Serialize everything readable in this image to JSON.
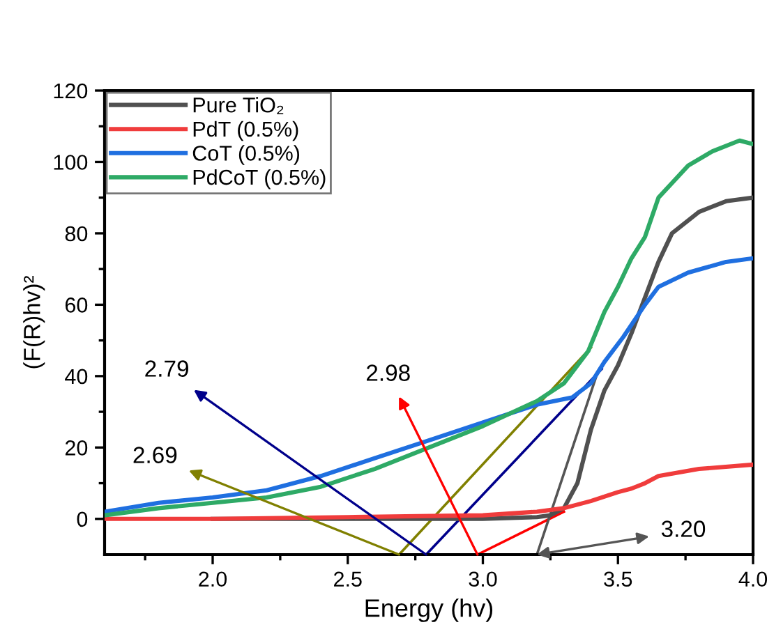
{
  "chart_data": {
    "type": "line",
    "xlabel": "Energy (hv)",
    "ylabel": "(F(R)hv)²",
    "xlim": [
      1.6,
      4.0
    ],
    "ylim": [
      -10,
      120
    ],
    "xticks": [
      {
        "value": 1.75,
        "label": null
      },
      {
        "value": 2.0,
        "label": "2.0"
      },
      {
        "value": 2.25,
        "label": null
      },
      {
        "value": 2.5,
        "label": "2.5"
      },
      {
        "value": 2.75,
        "label": null
      },
      {
        "value": 3.0,
        "label": "3.0"
      },
      {
        "value": 3.25,
        "label": null
      },
      {
        "value": 3.5,
        "label": "3.5"
      },
      {
        "value": 3.75,
        "label": null
      },
      {
        "value": 4.0,
        "label": "4.0"
      }
    ],
    "yticks": [
      0,
      {
        "value": 10,
        "label": null
      },
      20,
      {
        "value": 30,
        "label": null
      },
      40,
      {
        "value": 50,
        "label": null
      },
      60,
      {
        "value": 70,
        "label": null
      },
      80,
      {
        "value": 90,
        "label": null
      },
      100,
      {
        "value": 110,
        "label": null
      },
      120
    ],
    "grid": false,
    "legend": "top left",
    "series": [
      {
        "name": "Pure TiO₂",
        "color": "#505050",
        "x": [
          2.0,
          2.5,
          3.0,
          3.2,
          3.25,
          3.3,
          3.35,
          3.4,
          3.45,
          3.5,
          3.55,
          3.6,
          3.65,
          3.7,
          3.8,
          3.9,
          4.0
        ],
        "values": [
          0,
          0,
          0,
          0.5,
          1,
          3,
          10,
          25,
          36,
          43,
          52,
          62,
          72,
          80,
          86,
          89,
          90
        ]
      },
      {
        "name": "PdT (0.5%)",
        "color": "#f03c3c",
        "x": [
          1.6,
          2.0,
          2.5,
          3.0,
          3.2,
          3.3,
          3.4,
          3.5,
          3.55,
          3.6,
          3.65,
          3.8,
          4.0
        ],
        "values": [
          0,
          0,
          0.5,
          1,
          2,
          3,
          5,
          7.5,
          8.5,
          10,
          12,
          14,
          15.2
        ]
      },
      {
        "name": "CoT (0.5%)",
        "color": "#1f6fe0",
        "x": [
          1.6,
          1.8,
          2.0,
          2.2,
          2.4,
          2.6,
          2.8,
          3.0,
          3.2,
          3.33,
          3.4,
          3.45,
          3.52,
          3.6,
          3.65,
          3.76,
          3.9,
          4.0
        ],
        "values": [
          2,
          4.5,
          6,
          8,
          12,
          17,
          22,
          27,
          32,
          34,
          38,
          44,
          51,
          60,
          65,
          69,
          72,
          73
        ]
      },
      {
        "name": "PdCoT (0.5%)",
        "color": "#2eaa66",
        "x": [
          1.6,
          1.8,
          2.0,
          2.2,
          2.4,
          2.6,
          2.8,
          3.0,
          3.2,
          3.3,
          3.39,
          3.45,
          3.5,
          3.55,
          3.6,
          3.65,
          3.76,
          3.85,
          3.95,
          4.0
        ],
        "values": [
          1,
          3,
          4.5,
          6,
          9,
          14,
          20,
          26,
          33,
          38,
          47,
          58,
          65,
          73,
          79,
          90,
          99,
          103,
          106,
          105
        ]
      },
      {
        "color": "#00008b",
        "x": [
          2.79,
          3.44
        ],
        "values": [
          -10,
          42
        ]
      },
      {
        "color": "#ff0000",
        "x": [
          2.98,
          3.3
        ],
        "values": [
          -10,
          2
        ]
      },
      {
        "color": "#808000",
        "x": [
          2.69,
          3.4
        ],
        "values": [
          -10,
          48
        ]
      },
      {
        "color": "#555555",
        "x": [
          3.2,
          3.42
        ],
        "values": [
          -10,
          40
        ]
      }
    ],
    "annotations": [
      {
        "text": "2.79",
        "x": 2.79,
        "y": -10
      },
      {
        "text": "2.98",
        "x": 2.98,
        "y": -10
      },
      {
        "text": "2.69",
        "x": 2.69,
        "y": -10
      },
      {
        "text": "3.20",
        "x": 3.2,
        "y": -10
      }
    ]
  }
}
